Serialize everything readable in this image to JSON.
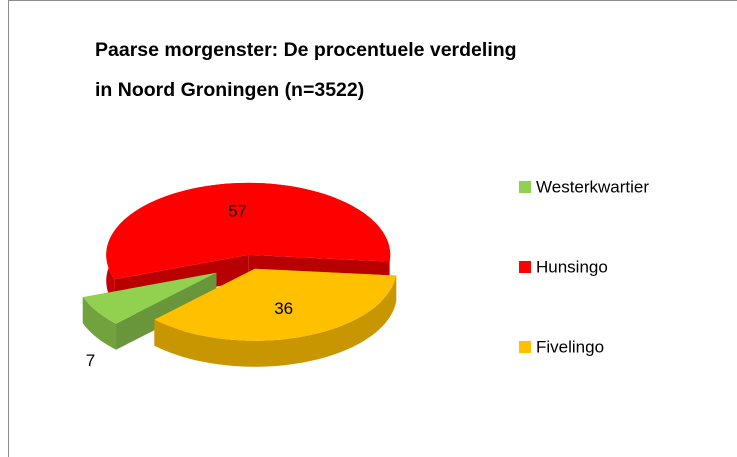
{
  "chart_data": {
    "type": "pie",
    "title": "Paarse morgenster: De procentuele verdeling in Noord Groningen (n=3522)",
    "categories": [
      "Westerkwartier",
      "Hunsingo",
      "Fivelingo"
    ],
    "values": [
      7,
      57,
      36
    ],
    "colors": [
      "#92d050",
      "#ff0000",
      "#ffc000"
    ],
    "legend": "right"
  }
}
